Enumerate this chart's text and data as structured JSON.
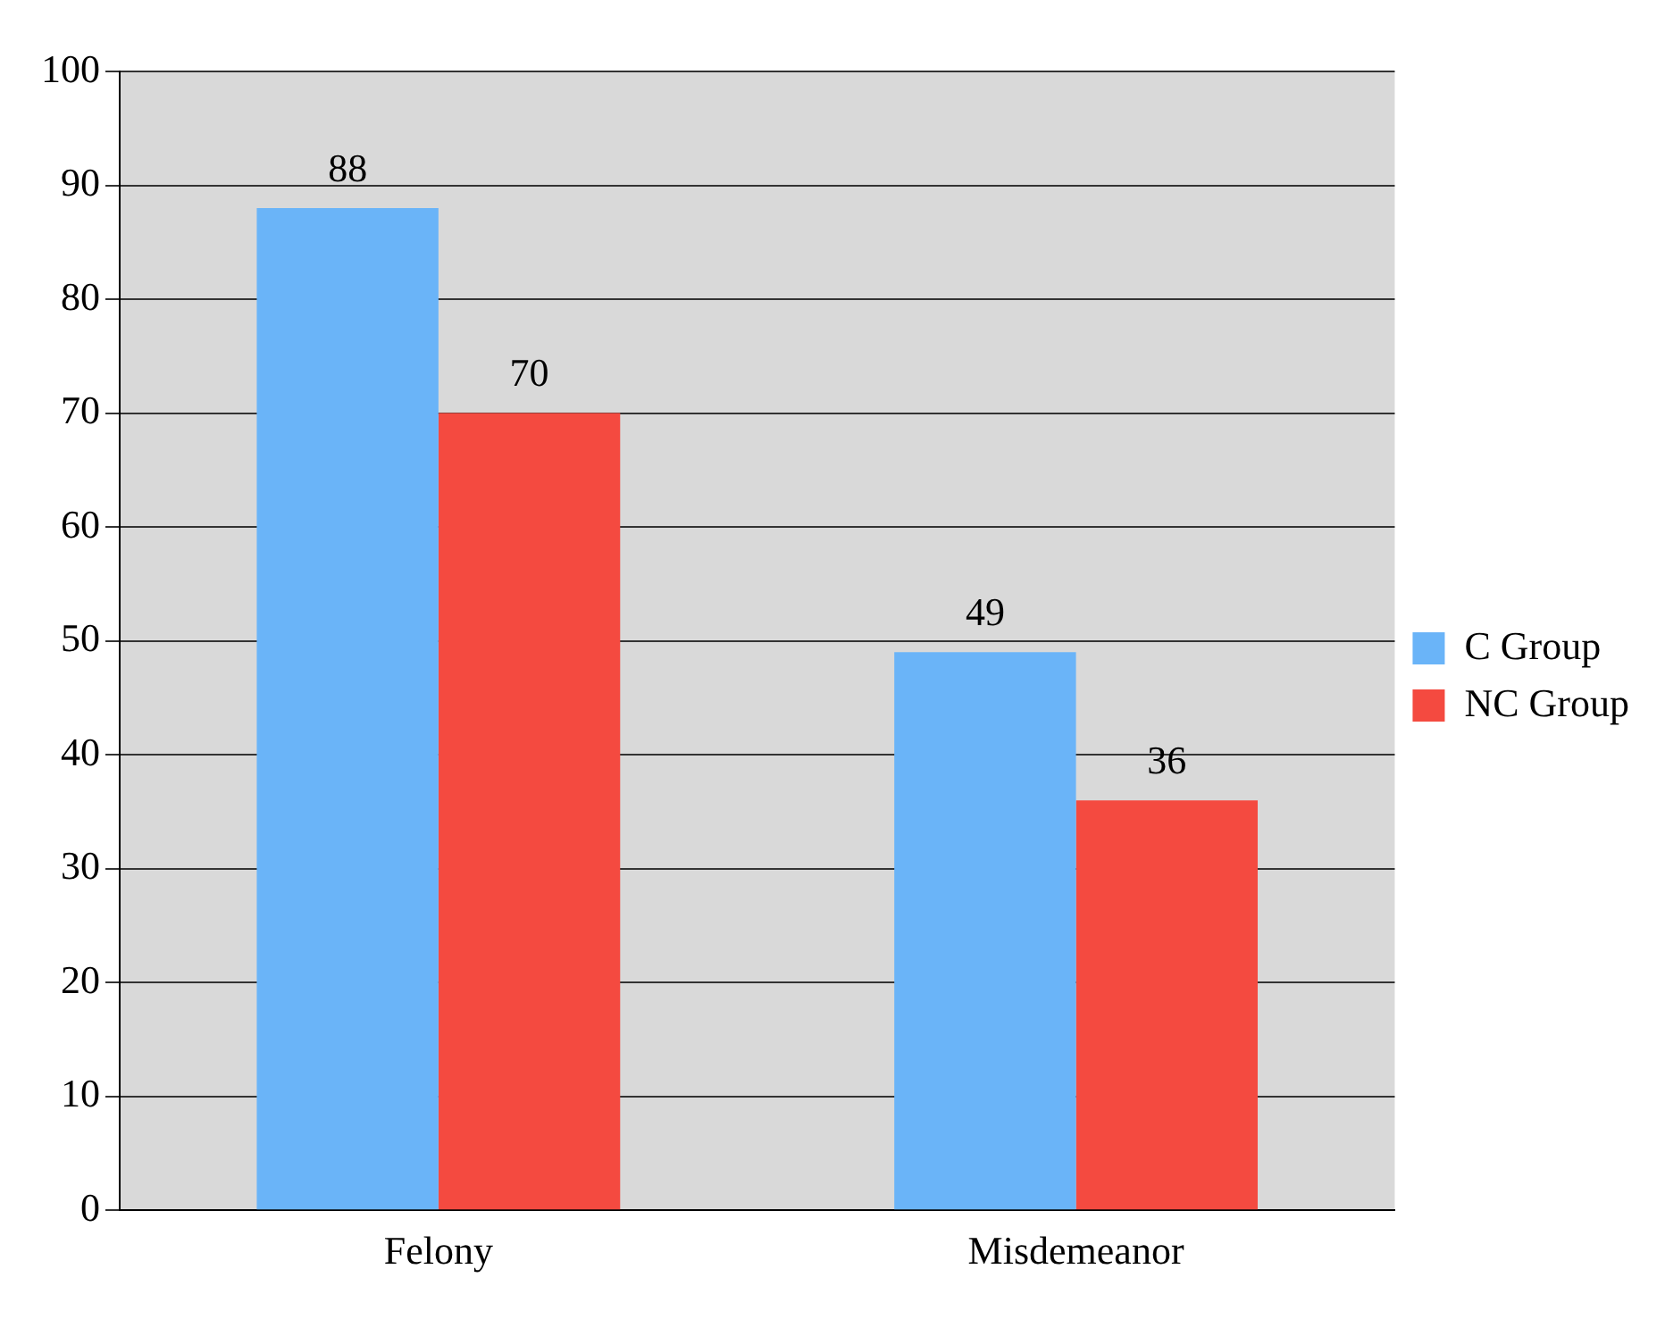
{
  "chart_data": {
    "type": "bar",
    "categories": [
      "Felony",
      "Misdemeanor"
    ],
    "series": [
      {
        "name": "C Group",
        "color": "#6ab4f8",
        "values": [
          88,
          49
        ]
      },
      {
        "name": "NC Group",
        "color": "#f44a40",
        "values": [
          70,
          36
        ]
      }
    ],
    "ylim": [
      0,
      100
    ],
    "yticks": [
      0,
      10,
      20,
      30,
      40,
      50,
      60,
      70,
      80,
      90,
      100
    ],
    "grid": "y",
    "legend": "right",
    "data_labels": true
  }
}
